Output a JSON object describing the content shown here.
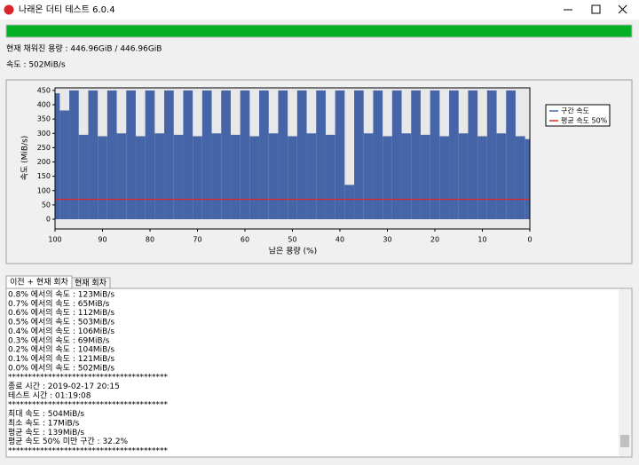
{
  "window": {
    "title": "나래온 더티 테스트 6.0.4"
  },
  "status": {
    "filled": "현재 채워진 용량 : 446.96GiB / 446.96GiB",
    "speed": "속도 : 502MiB/s"
  },
  "chart_data": {
    "type": "bar",
    "ylabel": "속도 (MiB/s)",
    "xlabel": "남은 용량 (%)",
    "x": [
      100,
      98,
      96,
      94,
      92,
      90,
      88,
      86,
      84,
      82,
      80,
      78,
      76,
      74,
      72,
      70,
      68,
      66,
      64,
      62,
      60,
      58,
      56,
      54,
      52,
      50,
      48,
      46,
      44,
      42,
      40,
      38,
      36,
      34,
      32,
      30,
      28,
      26,
      24,
      22,
      20,
      18,
      16,
      14,
      12,
      10,
      8,
      6,
      4,
      2,
      0
    ],
    "series": [
      {
        "name": "구간 속도",
        "color": "#4565a8",
        "values": [
          440,
          380,
          450,
          295,
          450,
          290,
          450,
          300,
          450,
          290,
          450,
          300,
          450,
          295,
          450,
          290,
          450,
          300,
          450,
          295,
          450,
          290,
          450,
          300,
          450,
          290,
          450,
          300,
          450,
          295,
          450,
          120,
          450,
          300,
          450,
          290,
          450,
          300,
          450,
          295,
          450,
          290,
          450,
          300,
          450,
          290,
          450,
          300,
          450,
          290,
          280
        ]
      }
    ],
    "reference_line": {
      "name": "평균 속도 50%",
      "color": "#e02828",
      "value": 69.5
    },
    "xlim": [
      100,
      0
    ],
    "ylim": [
      -34,
      459
    ],
    "xticks": [
      100,
      90,
      80,
      70,
      60,
      50,
      40,
      30,
      20,
      10,
      0
    ],
    "yticks": [
      0,
      50,
      100,
      150,
      200,
      250,
      300,
      350,
      400,
      450
    ],
    "legend": "right"
  },
  "tabs": [
    "이전 + 현재 회차",
    "현재 회차"
  ],
  "log": [
    "0.8% 에서의 속도 : 123MiB/s",
    "0.7% 에서의 속도 : 65MiB/s",
    "0.6% 에서의 속도 : 112MiB/s",
    "0.5% 에서의 속도 : 503MiB/s",
    "0.4% 에서의 속도 : 106MiB/s",
    "0.3% 에서의 속도 : 69MiB/s",
    "0.2% 에서의 속도 : 104MiB/s",
    "0.1% 에서의 속도 : 121MiB/s",
    "0.0% 에서의 속도 : 502MiB/s",
    "****************************************",
    "종료 시간 : 2019-02-17 20:15",
    "테스트 시간 : 01:19:08",
    "****************************************",
    "최대 속도 : 504MiB/s",
    "최소 속도 : 17MiB/s",
    "평균 속도 : 139MiB/s",
    "평균 속도 50% 미만 구간 : 32.2%",
    "****************************************"
  ]
}
